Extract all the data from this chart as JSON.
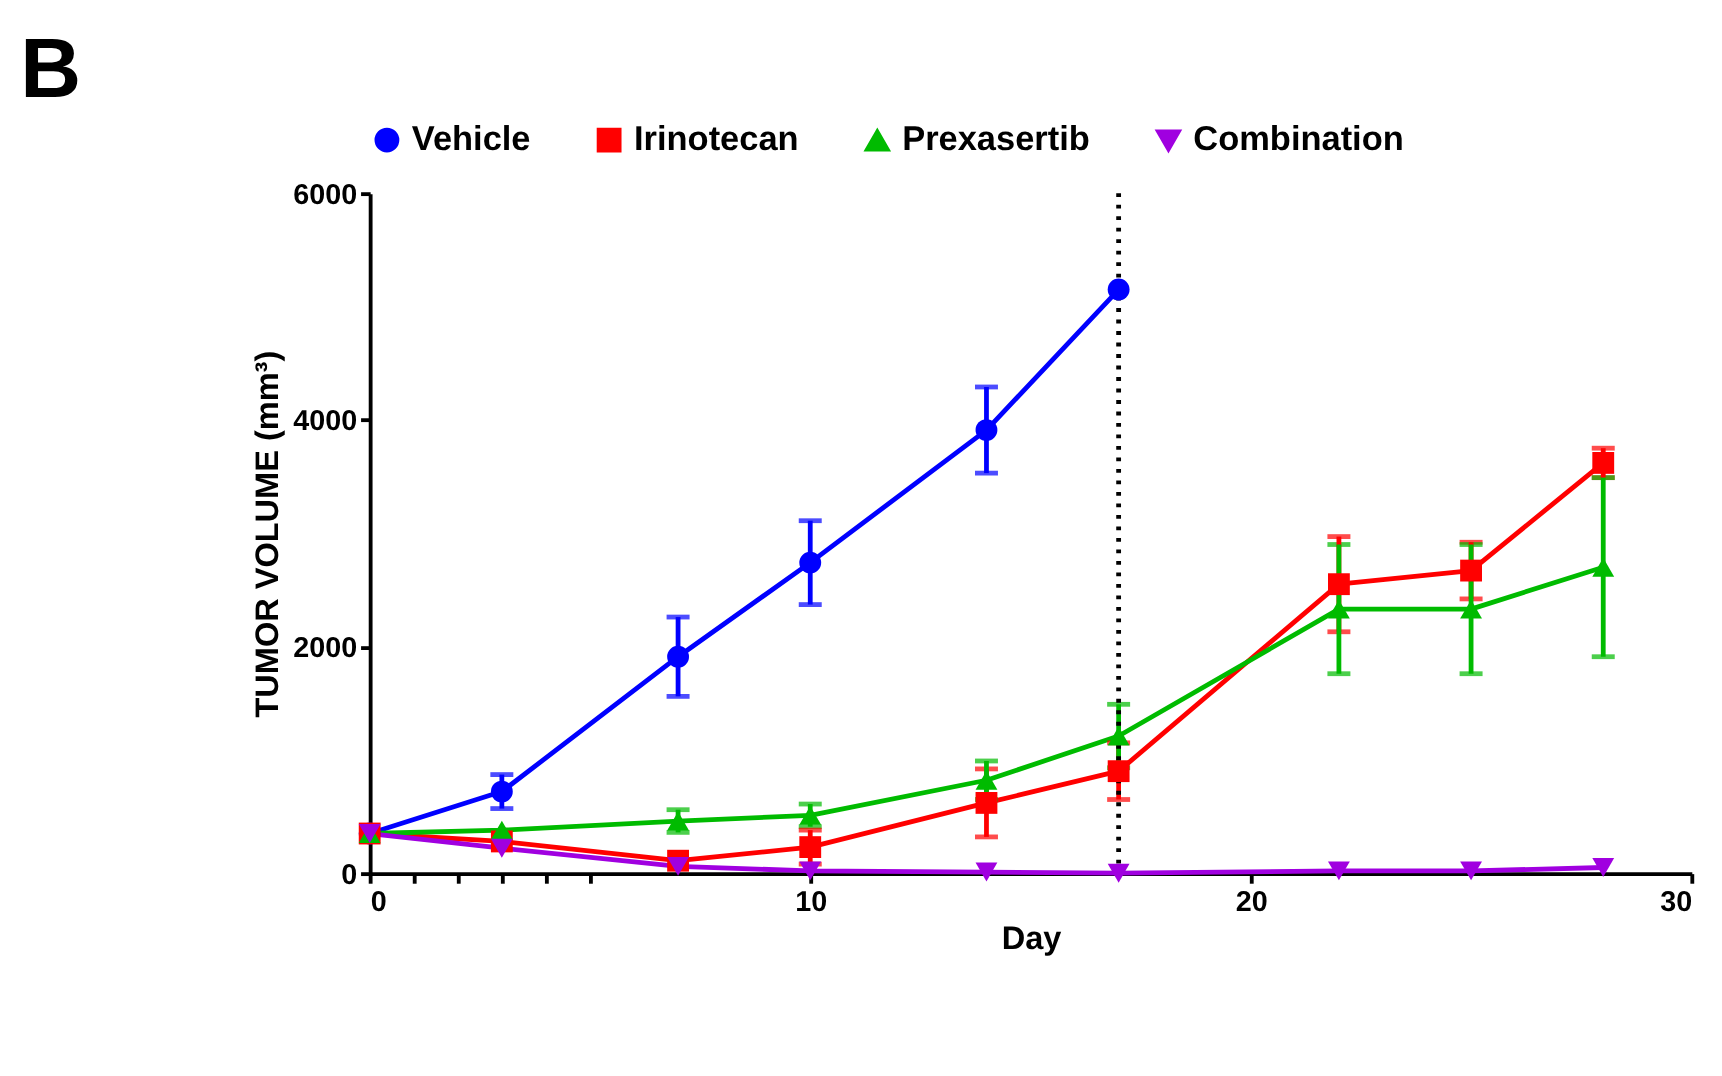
{
  "chart_data": {
    "type": "line",
    "title": "B",
    "xlabel": "Day",
    "ylabel": "TUMOR VOLUME (mm³)",
    "x": [
      0,
      3,
      7,
      10,
      14,
      17,
      22,
      25,
      28
    ],
    "xlim": [
      0,
      30
    ],
    "xticks": [
      0,
      {
        "value": 1,
        "label": null
      },
      {
        "value": 2,
        "label": null
      },
      {
        "value": 3,
        "label": null
      },
      {
        "value": 4,
        "label": null
      },
      {
        "value": 5,
        "label": null
      },
      10,
      20,
      30
    ],
    "ylim": [
      0,
      6000
    ],
    "yticks": [
      0,
      2000,
      4000,
      6000
    ],
    "legend": "top",
    "series": [
      {
        "name": "Vehicle",
        "color": "#0000ff",
        "marker": "circle",
        "x": [
          0,
          3,
          7,
          10,
          14,
          17
        ],
        "values": [
          350,
          720,
          1910,
          2740,
          3910,
          5150
        ],
        "errors": [
          null,
          150,
          350,
          370,
          380,
          null
        ]
      },
      {
        "name": "Irinotecan",
        "color": "#ff0000",
        "marker": "square",
        "values": [
          350,
          280,
          110,
          230,
          620,
          900,
          2550,
          2670,
          3620
        ],
        "errors": [
          null,
          null,
          null,
          150,
          300,
          250,
          420,
          250,
          130
        ]
      },
      {
        "name": "Prexasertib",
        "color": "#00bb00",
        "marker": "triangle",
        "values": [
          350,
          380,
          460,
          510,
          820,
          1210,
          2330,
          2330,
          2700
        ],
        "errors": [
          null,
          null,
          100,
          100,
          170,
          280,
          570,
          570,
          790
        ]
      },
      {
        "name": "Combination",
        "color": "#a000e0",
        "marker": "triangle-down",
        "values": [
          350,
          220,
          60,
          20,
          10,
          0,
          20,
          20,
          50
        ]
      }
    ],
    "ref_lines": [
      {
        "axis": "x",
        "value": 17,
        "color": "#000000",
        "line_style": "dotted"
      }
    ]
  }
}
